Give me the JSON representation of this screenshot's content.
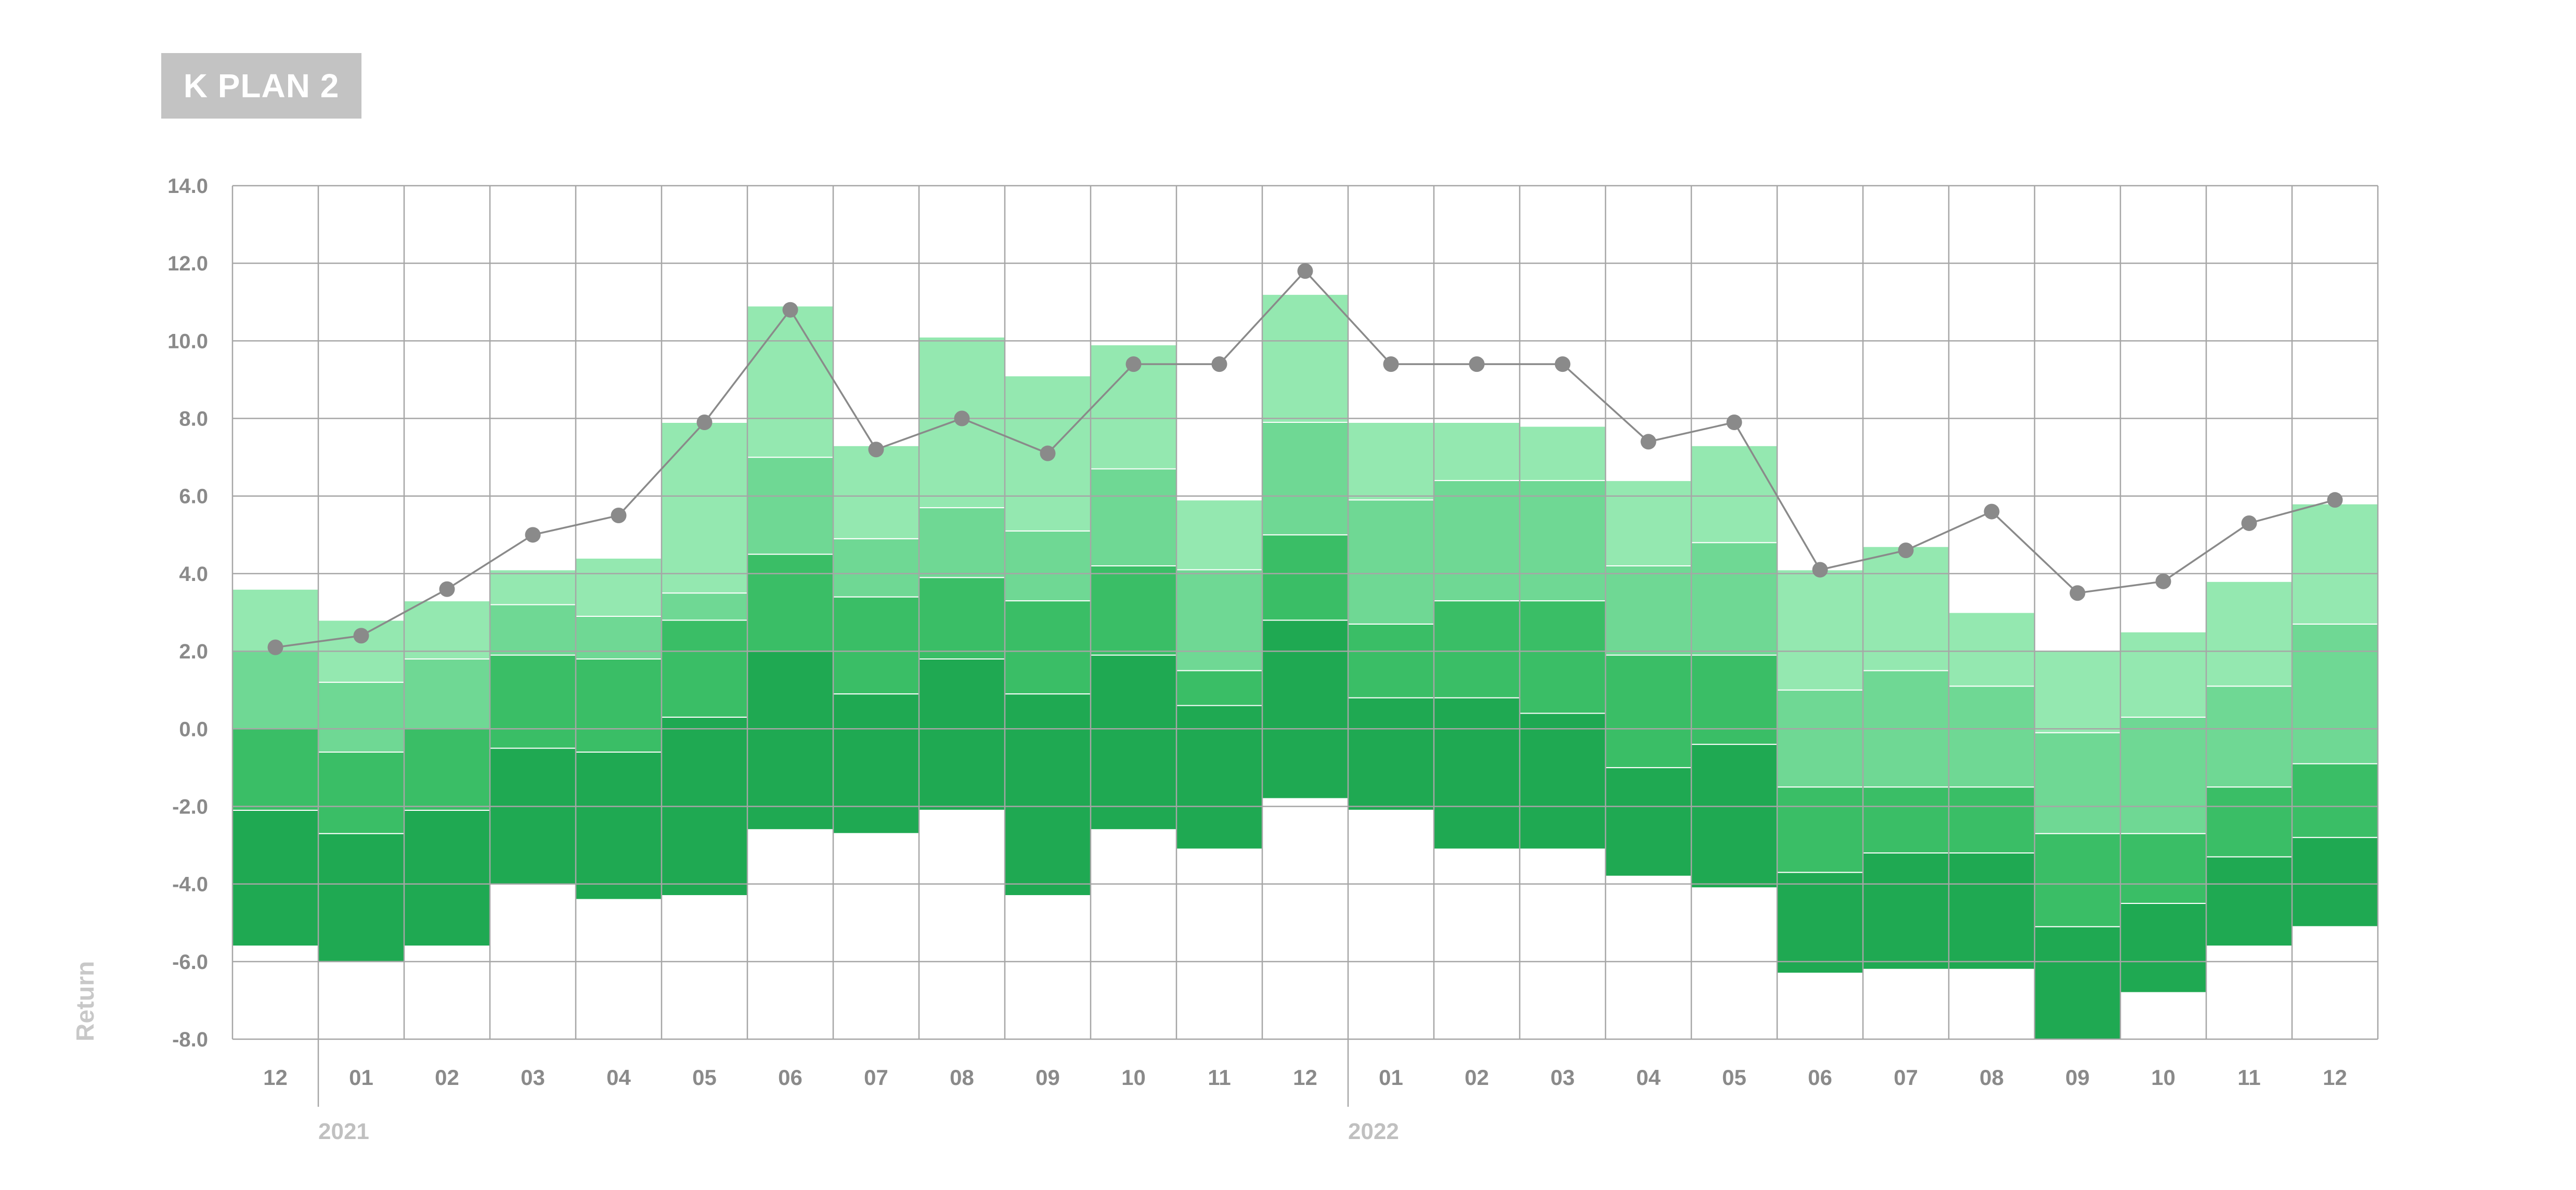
{
  "title": "K PLAN 2",
  "chart_data": {
    "type": "bar",
    "subtype": "stacked floating bands with line overlay",
    "title": "K PLAN 2",
    "ylabel": "Return",
    "xlabel": "",
    "ylim": [
      -8.0,
      14.0
    ],
    "yticks": [
      "14.0",
      "12.0",
      "10.0",
      "8.0",
      "6.0",
      "4.0",
      "2.0",
      "0.0",
      "-2.0",
      "-4.0",
      "-6.0",
      "-8.0"
    ],
    "grid": true,
    "categories": [
      "12",
      "01",
      "02",
      "03",
      "04",
      "05",
      "06",
      "07",
      "08",
      "09",
      "10",
      "11",
      "12",
      "01",
      "02",
      "03",
      "04",
      "05",
      "06",
      "07",
      "08",
      "09",
      "10",
      "11",
      "12"
    ],
    "year_labels": [
      {
        "label": "2021",
        "start_index": 1
      },
      {
        "label": "2022",
        "start_index": 13
      }
    ],
    "band_colors": [
      "#1fa952",
      "#3abe66",
      "#6fd894",
      "#94e8b0"
    ],
    "bands": [
      [
        -5.6,
        -2.1,
        0.0,
        2.0,
        3.6
      ],
      [
        -6.0,
        -2.7,
        -0.6,
        1.2,
        2.8
      ],
      [
        -5.6,
        -2.1,
        0.0,
        1.8,
        3.3
      ],
      [
        -4.0,
        -0.5,
        1.9,
        3.2,
        4.1
      ],
      [
        -4.4,
        -0.6,
        1.8,
        2.9,
        4.4
      ],
      [
        -4.3,
        0.3,
        2.8,
        3.5,
        7.9
      ],
      [
        -2.6,
        2.0,
        4.5,
        7.0,
        10.9
      ],
      [
        -2.7,
        0.9,
        3.4,
        4.9,
        7.3
      ],
      [
        -2.1,
        1.8,
        3.9,
        5.7,
        10.1
      ],
      [
        -4.3,
        0.9,
        3.3,
        5.1,
        9.1
      ],
      [
        -2.6,
        1.9,
        4.2,
        6.7,
        9.9
      ],
      [
        -3.1,
        0.6,
        1.5,
        4.1,
        5.9
      ],
      [
        -1.8,
        2.8,
        5.0,
        7.9,
        11.2
      ],
      [
        -2.1,
        0.8,
        2.7,
        5.9,
        7.9
      ],
      [
        -3.1,
        0.8,
        3.3,
        6.4,
        7.9
      ],
      [
        -3.1,
        0.4,
        3.3,
        6.4,
        7.8
      ],
      [
        -3.8,
        -1.0,
        1.9,
        4.2,
        6.4
      ],
      [
        -4.1,
        -0.4,
        1.9,
        4.8,
        7.3
      ],
      [
        -6.3,
        -3.7,
        -1.5,
        1.0,
        4.1
      ],
      [
        -6.2,
        -3.2,
        -1.5,
        1.5,
        4.7
      ],
      [
        -6.2,
        -3.2,
        -1.5,
        1.1,
        3.0
      ],
      [
        -8.0,
        -5.1,
        -2.7,
        -0.1,
        2.0
      ],
      [
        -6.8,
        -4.5,
        -2.7,
        0.3,
        2.5
      ],
      [
        -5.6,
        -3.3,
        -1.5,
        1.1,
        3.8
      ],
      [
        -5.1,
        -2.8,
        -0.9,
        2.7,
        5.8
      ]
    ],
    "line": [
      2.1,
      2.4,
      3.6,
      5.0,
      5.5,
      7.9,
      10.8,
      7.2,
      8.0,
      7.1,
      9.4,
      9.4,
      11.8,
      9.4,
      9.4,
      9.4,
      7.4,
      7.9,
      4.1,
      4.6,
      5.6,
      3.5,
      3.8,
      5.3,
      5.9
    ],
    "line_color": "#8a8a8a",
    "grid_color": "#a6a6a6"
  }
}
